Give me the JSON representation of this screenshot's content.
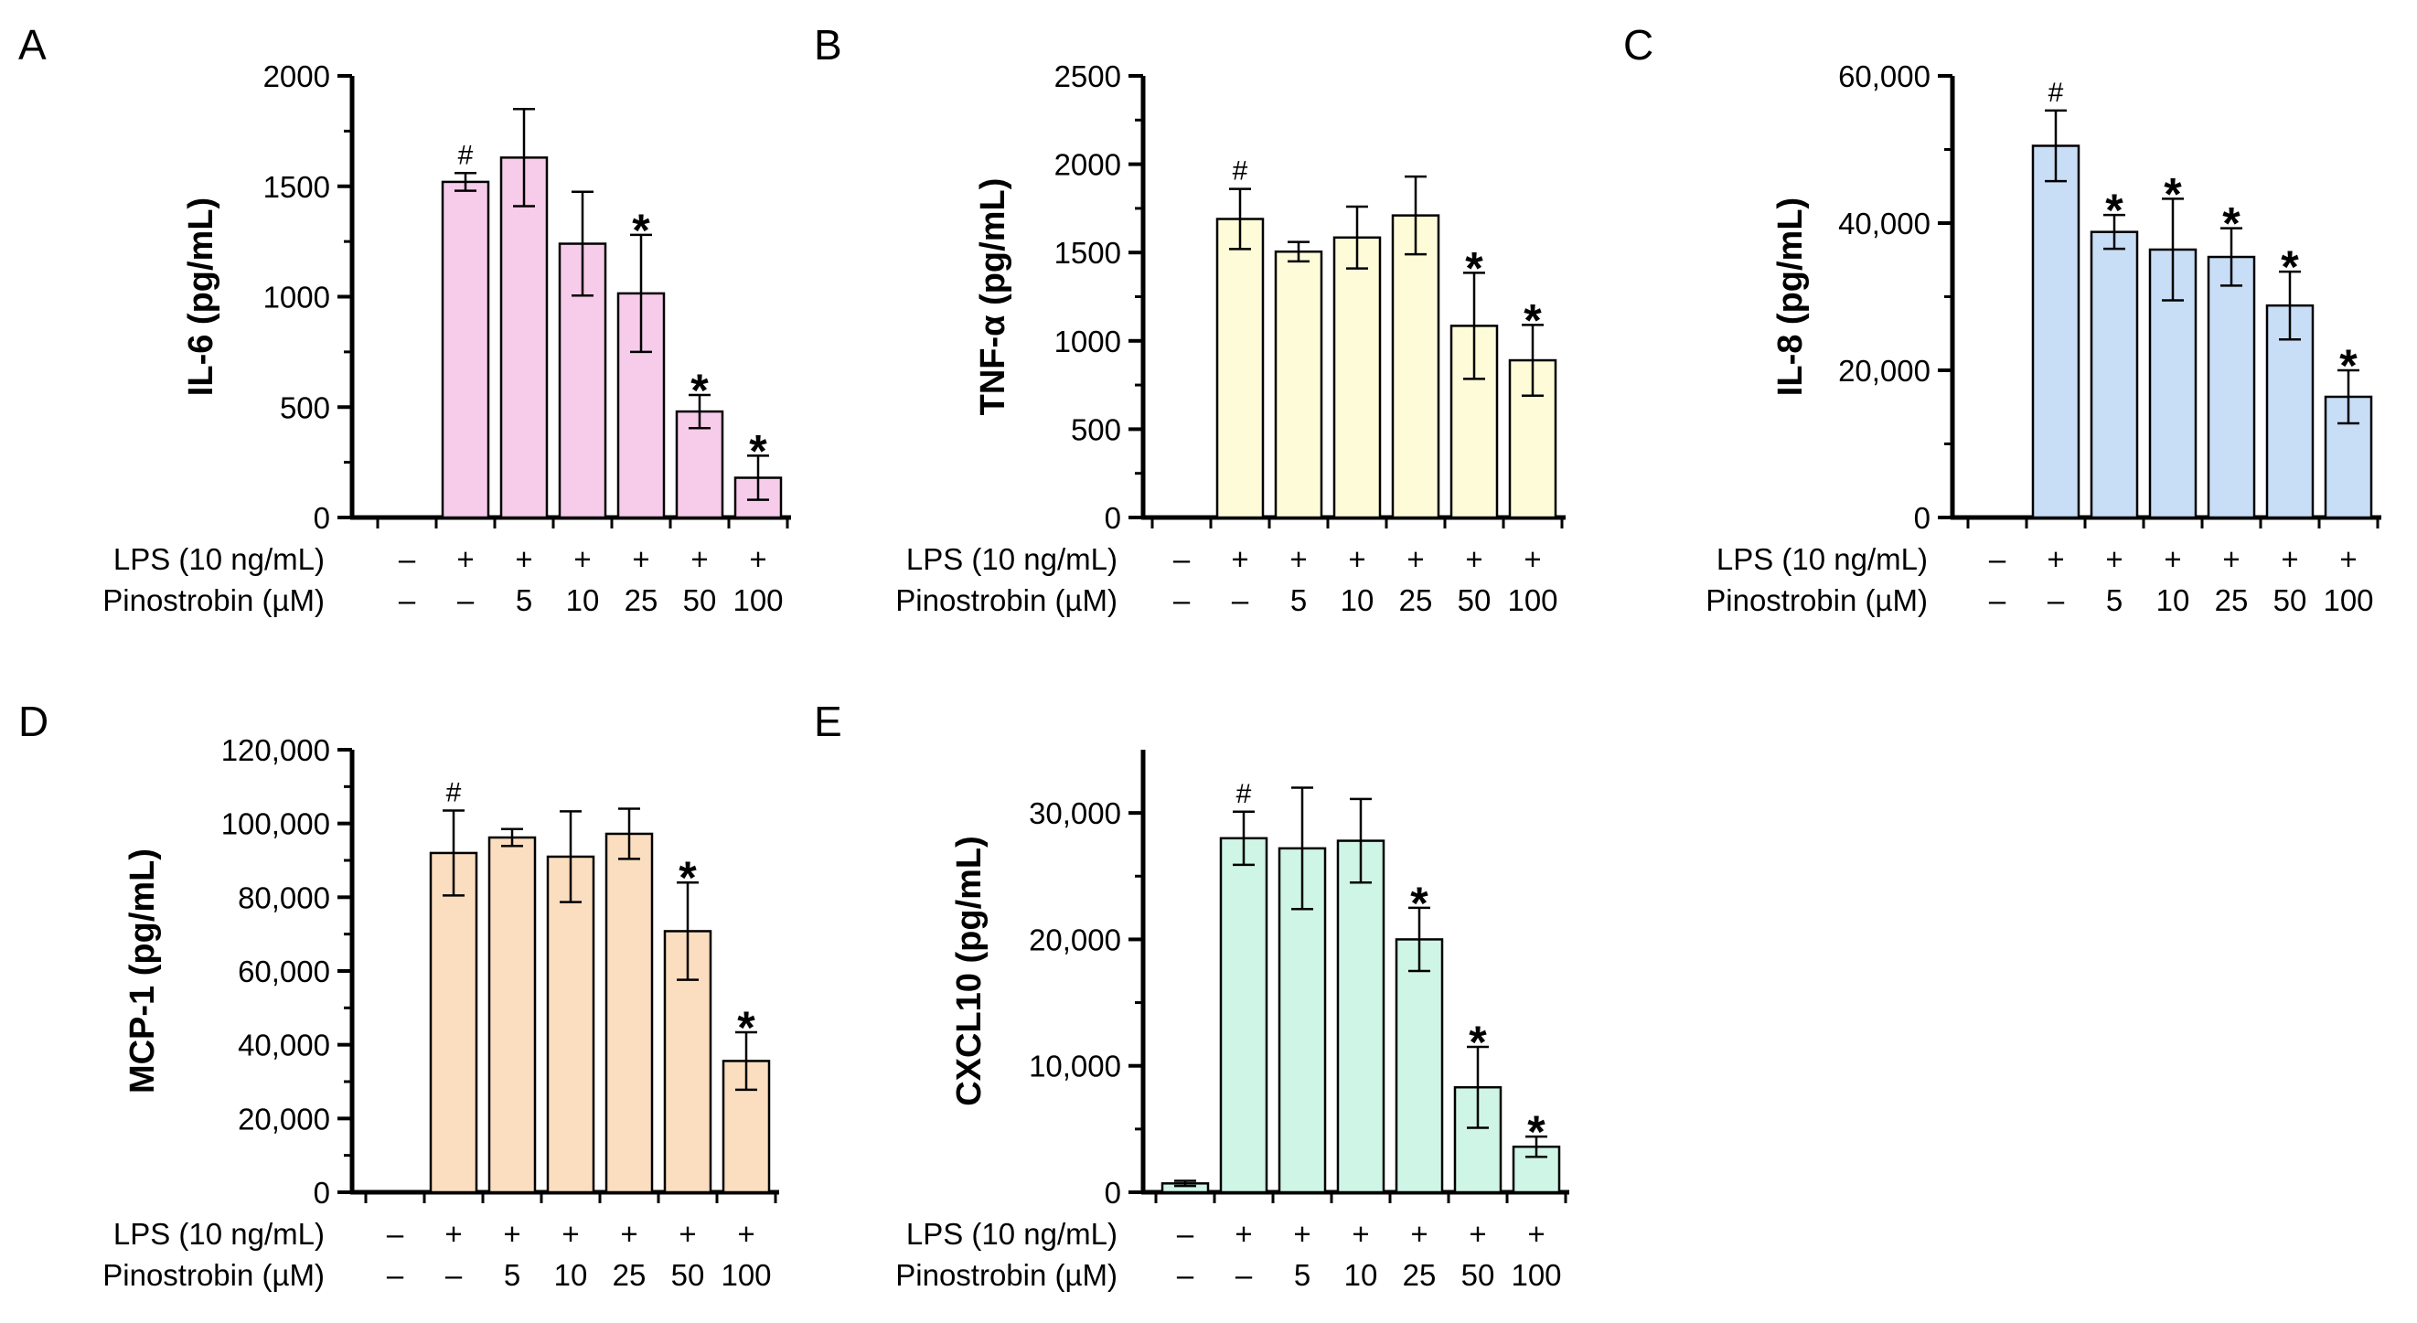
{
  "chart_data": [
    {
      "panel_label": "A",
      "type": "bar",
      "ylabel": "IL-6 (pg/mL)",
      "ylim": [
        0,
        2000
      ],
      "yticks": [
        0,
        500,
        1000,
        1500,
        2000
      ],
      "ytick_labels": [
        "0",
        "500",
        "1000",
        "1500",
        "2000"
      ],
      "color": "#F7CBEA",
      "values": [
        0,
        1520,
        1630,
        1240,
        1015,
        480,
        180
      ],
      "errors": [
        0,
        40,
        220,
        235,
        265,
        75,
        100
      ],
      "annotations": [
        "",
        "#",
        "",
        "",
        "*",
        "*",
        "*"
      ]
    },
    {
      "panel_label": "B",
      "type": "bar",
      "ylabel": "TNF-α (pg/mL)",
      "ylim": [
        0,
        2500
      ],
      "yticks": [
        0,
        500,
        1000,
        1500,
        2000,
        2500
      ],
      "ytick_labels": [
        "0",
        "500",
        "1000",
        "1500",
        "2000",
        "2500"
      ],
      "color": "#FDFBD8",
      "values": [
        0,
        1690,
        1505,
        1585,
        1710,
        1085,
        890
      ],
      "errors": [
        0,
        170,
        55,
        175,
        220,
        300,
        200
      ],
      "annotations": [
        "",
        "#",
        "",
        "",
        "",
        "*",
        "*"
      ]
    },
    {
      "panel_label": "C",
      "type": "bar",
      "ylabel": "IL-8 (pg/mL)",
      "ylim": [
        0,
        60000
      ],
      "yticks": [
        0,
        20000,
        40000,
        60000
      ],
      "ytick_labels": [
        "0",
        "20,000",
        "40,000",
        "60,000"
      ],
      "color": "#C8DDF6",
      "values": [
        0,
        50500,
        38800,
        36400,
        35400,
        28800,
        16400
      ],
      "errors": [
        0,
        4800,
        2300,
        6900,
        3900,
        4600,
        3600
      ],
      "annotations": [
        "",
        "#",
        "*",
        "*",
        "*",
        "*",
        "*"
      ]
    },
    {
      "panel_label": "D",
      "type": "bar",
      "ylabel": "MCP-1 (pg/mL)",
      "ylim": [
        0,
        120000
      ],
      "yticks": [
        0,
        20000,
        40000,
        60000,
        80000,
        100000,
        120000
      ],
      "ytick_labels": [
        "0",
        "20,000",
        "40,000",
        "60,000",
        "80,000",
        "100,000",
        "120,000"
      ],
      "color": "#FBDDBF",
      "values": [
        0,
        92000,
        96200,
        91000,
        97200,
        70800,
        35600
      ],
      "errors": [
        0,
        11500,
        2300,
        12300,
        6800,
        13200,
        7800
      ],
      "annotations": [
        "",
        "#",
        "",
        "",
        "",
        "*",
        "*"
      ]
    },
    {
      "panel_label": "E",
      "type": "bar",
      "ylabel": "CXCL10 (pg/mL)",
      "ylim": [
        0,
        35000
      ],
      "yticks": [
        0,
        10000,
        20000,
        30000
      ],
      "ytick_labels": [
        "0",
        "10,000",
        "20,000",
        "30,000"
      ],
      "color": "#CFF5E6",
      "values": [
        700,
        28000,
        27200,
        27800,
        20000,
        8300,
        3600
      ],
      "errors": [
        200,
        2100,
        4800,
        3300,
        2500,
        3200,
        800
      ],
      "annotations": [
        "",
        "#",
        "",
        "",
        "*",
        "*",
        "*"
      ]
    }
  ],
  "treatment_rows": [
    {
      "label": "LPS (10 ng/mL)",
      "values": [
        "–",
        "+",
        "+",
        "+",
        "+",
        "+",
        "+"
      ]
    },
    {
      "label": "Pinostrobin (µM)",
      "values": [
        "–",
        "–",
        "5",
        "10",
        "25",
        "50",
        "100"
      ]
    }
  ]
}
